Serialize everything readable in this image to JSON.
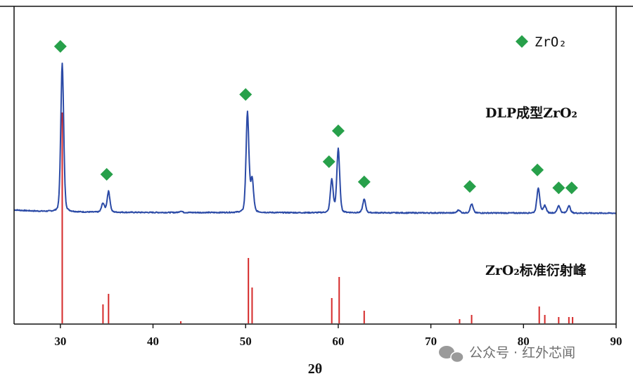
{
  "chart_data": {
    "type": "line",
    "xlabel": "2θ",
    "ylabel": "",
    "xlim": [
      25,
      90
    ],
    "xticks": [
      30,
      40,
      50,
      60,
      70,
      80,
      90
    ],
    "grid": false,
    "legend": {
      "placement": "top-right",
      "marker": "diamond",
      "color": "#27a04a",
      "label": "ZrO₂"
    },
    "series_colors": {
      "measured": "#2b4aa6",
      "reference": "#d52a2a",
      "marker": "#27a04a"
    },
    "annotations": {
      "measured_label": "DLP成型ZrO₂",
      "reference_label": "ZrO₂标准衍射峰"
    },
    "measured_pattern": {
      "baseline": 11,
      "peaks": [
        {
          "x": 30.2,
          "y": 100
        },
        {
          "x": 34.6,
          "y": 6
        },
        {
          "x": 35.2,
          "y": 14
        },
        {
          "x": 43.0,
          "y": 1
        },
        {
          "x": 50.2,
          "y": 67
        },
        {
          "x": 50.7,
          "y": 22
        },
        {
          "x": 59.3,
          "y": 22
        },
        {
          "x": 60.0,
          "y": 43
        },
        {
          "x": 62.8,
          "y": 9
        },
        {
          "x": 73.0,
          "y": 2
        },
        {
          "x": 74.4,
          "y": 6
        },
        {
          "x": 81.6,
          "y": 17
        },
        {
          "x": 82.3,
          "y": 5
        },
        {
          "x": 83.8,
          "y": 5
        },
        {
          "x": 84.9,
          "y": 5
        }
      ]
    },
    "reference_peaks": {
      "x": [
        30.2,
        34.6,
        35.2,
        43.0,
        50.3,
        50.7,
        59.3,
        60.1,
        62.8,
        73.1,
        74.4,
        81.7,
        82.3,
        83.8,
        84.9,
        85.3
      ],
      "y": [
        100,
        9,
        14,
        1,
        31,
        17,
        12,
        22,
        6,
        2,
        4,
        8,
        4,
        3,
        3,
        3
      ]
    },
    "phase_markers": {
      "phase": "ZrO₂",
      "x": [
        30.0,
        35.0,
        50.0,
        59.0,
        60.0,
        62.8,
        74.2,
        81.5,
        83.8,
        85.2
      ]
    }
  },
  "watermark": {
    "text": "公众号 · 红外芯闻"
  }
}
